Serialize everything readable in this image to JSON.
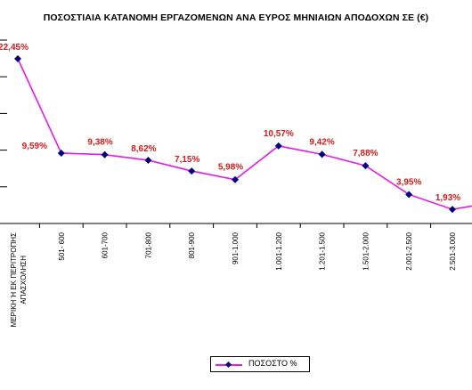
{
  "chart_data": {
    "type": "line",
    "title": "ΠΟΣΟΣΤΙΑΙΑ ΚΑΤΑΝΟΜΗ ΕΡΓΑΖΟΜΕΝΩΝ ΑΝΑ ΕΥΡΟΣ ΜΗΝΙΑΙΩΝ ΑΠΟΔΟΧΩΝ ΣΕ (€)",
    "xlabel": "",
    "ylabel": "",
    "ylim": [
      0,
      25
    ],
    "grid": "horizontal",
    "legend_position": "bottom",
    "categories": [
      "ΜΕΡΙΚΗ Ή ΕΚ ΠΕΡΙΤΡΟΠΗΣ ΑΠΑΣΧΟΛΗΣΗ",
      "501- 600",
      "601-700",
      "701-800",
      "801-900",
      "901-1.000",
      "1.001-1.200",
      "1.201-1.500",
      "1.501-2.000",
      "2.001-2.500",
      "2.501-3.000",
      ""
    ],
    "series": [
      {
        "name": "ΠΟΣΟΣΤΟ %",
        "color": "#e619e6",
        "marker_color": "#000080",
        "label_color": "#d21a1a",
        "values": [
          22.45,
          9.59,
          9.38,
          8.62,
          7.15,
          5.98,
          10.57,
          9.42,
          7.88,
          3.95,
          1.93,
          2.9
        ],
        "labels": [
          "22,45%",
          "9,59%",
          "9,38%",
          "8,62%",
          "7,15%",
          "5,98%",
          "10,57%",
          "9,42%",
          "7,88%",
          "3,95%",
          "1,93%",
          ""
        ]
      }
    ]
  }
}
